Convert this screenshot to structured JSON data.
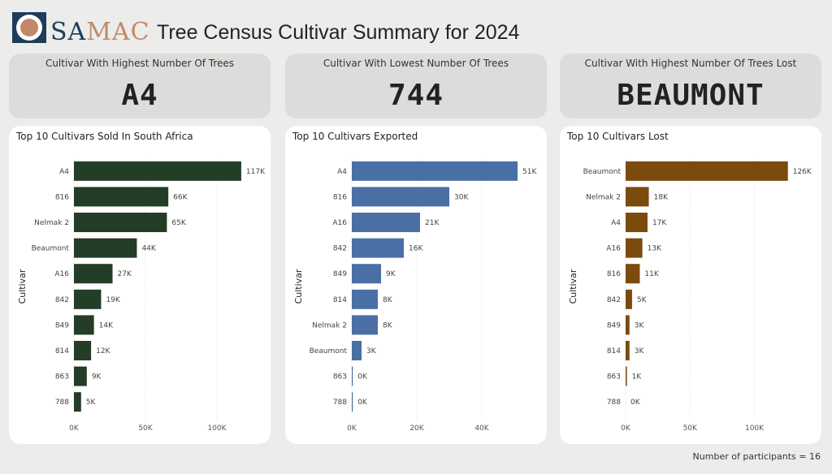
{
  "header": {
    "logo_text_a": "SA",
    "logo_text_b": "MAC",
    "title": "Tree Census Cultivar Summary for 2024"
  },
  "kpis": [
    {
      "label": "Cultivar With Highest Number Of Trees",
      "value": "A4"
    },
    {
      "label": "Cultivar With Lowest Number Of Trees",
      "value": "744"
    },
    {
      "label": "Cultivar With Highest Number Of Trees Lost",
      "value": "BEAUMONT"
    }
  ],
  "footnote": "Number of participants = 16",
  "colors": {
    "sold": "#233d26",
    "exported": "#4a6fa5",
    "lost": "#7b4a0d"
  },
  "chart_data": [
    {
      "type": "bar",
      "orientation": "horizontal",
      "title": "Top 10 Cultivars Sold In South Africa",
      "ylabel": "Cultivar",
      "xlabel": "",
      "xlim": [
        0,
        125000
      ],
      "xticks": [
        0,
        50000,
        100000
      ],
      "xtick_labels": [
        "0K",
        "50K",
        "100K"
      ],
      "categories": [
        "A4",
        "816",
        "Nelmak 2",
        "Beaumont",
        "A16",
        "842",
        "849",
        "814",
        "863",
        "788"
      ],
      "values": [
        117000,
        66000,
        65000,
        44000,
        27000,
        19000,
        14000,
        12000,
        9000,
        5000
      ],
      "data_labels": [
        "117K",
        "66K",
        "65K",
        "44K",
        "27K",
        "19K",
        "14K",
        "12K",
        "9K",
        "5K"
      ],
      "grid": true
    },
    {
      "type": "bar",
      "orientation": "horizontal",
      "title": "Top 10 Cultivars Exported",
      "ylabel": "Cultivar",
      "xlabel": "",
      "xlim": [
        0,
        52000
      ],
      "xticks": [
        0,
        20000,
        40000
      ],
      "xtick_labels": [
        "0K",
        "20K",
        "40K"
      ],
      "categories": [
        "A4",
        "816",
        "A16",
        "842",
        "849",
        "814",
        "Nelmak 2",
        "Beaumont",
        "863",
        "788"
      ],
      "values": [
        51000,
        30000,
        21000,
        16000,
        9000,
        8000,
        8000,
        3000,
        300,
        300
      ],
      "data_labels": [
        "51K",
        "30K",
        "21K",
        "16K",
        "9K",
        "8K",
        "8K",
        "3K",
        "0K",
        "0K"
      ],
      "grid": true
    },
    {
      "type": "bar",
      "orientation": "horizontal",
      "title": "Top 10 Cultivars Lost",
      "ylabel": "Cultivar",
      "xlabel": "",
      "xlim": [
        0,
        135000
      ],
      "xticks": [
        0,
        50000,
        100000
      ],
      "xtick_labels": [
        "0K",
        "50K",
        "100K"
      ],
      "categories": [
        "Beaumont",
        "Nelmak 2",
        "A4",
        "A16",
        "816",
        "842",
        "849",
        "814",
        "863",
        "788"
      ],
      "values": [
        126000,
        18000,
        17000,
        13000,
        11000,
        5000,
        3000,
        3000,
        1000,
        0
      ],
      "data_labels": [
        "126K",
        "18K",
        "17K",
        "13K",
        "11K",
        "5K",
        "3K",
        "3K",
        "1K",
        "0K"
      ],
      "grid": true
    }
  ]
}
